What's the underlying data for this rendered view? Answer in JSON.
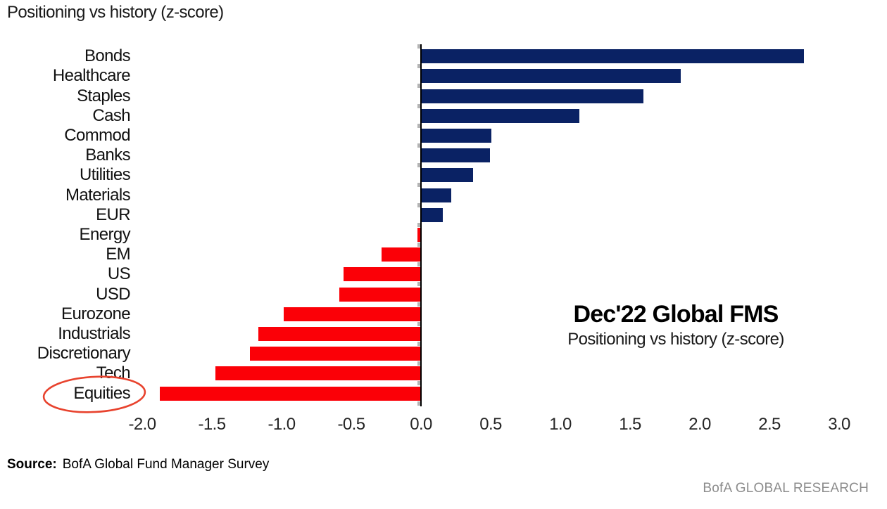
{
  "page": {
    "source_label": "Source:",
    "source_text": "BofA Global Fund Manager Survey",
    "brand_text": "BofA GLOBAL RESEARCH"
  },
  "annotation": {
    "title": "Dec'22 Global FMS",
    "subtitle": "Positioning vs history (z-score)"
  },
  "chart_data": {
    "type": "bar",
    "orientation": "horizontal",
    "title": "Positioning vs history (z-score)",
    "categories": [
      "Bonds",
      "Healthcare",
      "Staples",
      "Cash",
      "Commod",
      "Banks",
      "Utilities",
      "Materials",
      "EUR",
      "Energy",
      "EM",
      "US",
      "USD",
      "Eurozone",
      "Industrials",
      "Discretionary",
      "Tech",
      "Equities"
    ],
    "values": [
      2.74,
      1.86,
      1.59,
      1.13,
      0.5,
      0.49,
      0.37,
      0.21,
      0.15,
      -0.02,
      -0.28,
      -0.55,
      -0.58,
      -0.98,
      -1.16,
      -1.22,
      -1.47,
      -1.87
    ],
    "xlabel": "",
    "ylabel": "",
    "xlim": [
      -2.0,
      3.0
    ],
    "grid": false,
    "legend": "none",
    "x_ticks": [
      {
        "v": -2.0,
        "label": "-2.0"
      },
      {
        "v": -1.5,
        "label": "-1.5"
      },
      {
        "v": -1.0,
        "label": "-1.0"
      },
      {
        "v": -0.5,
        "label": "-0.5"
      },
      {
        "v": 0.0,
        "label": "0.0"
      },
      {
        "v": 0.5,
        "label": "0.5"
      },
      {
        "v": 1.0,
        "label": "1.0"
      },
      {
        "v": 1.5,
        "label": "1.5"
      },
      {
        "v": 2.0,
        "label": "2.0"
      },
      {
        "v": 2.5,
        "label": "2.5"
      },
      {
        "v": 3.0,
        "label": "3.0"
      }
    ],
    "positive_color": "#0a2264",
    "negative_color": "#fb0007",
    "highlight_category": "Equities",
    "highlight_style": "red-ellipse",
    "highlight_color": "#e8432e"
  }
}
